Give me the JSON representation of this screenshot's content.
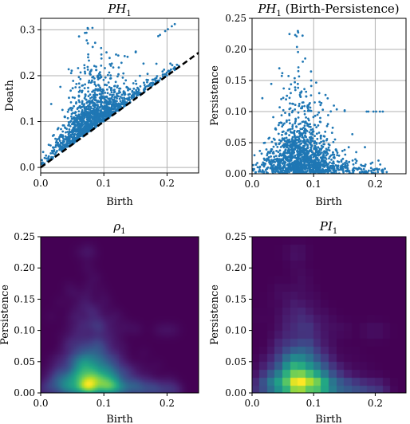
{
  "chart_data": [
    {
      "type": "scatter",
      "title": "PH_1",
      "title_main": "PH",
      "title_sub": "1",
      "xlabel": "Birth",
      "ylabel": "Death",
      "xlim": [
        0,
        0.25
      ],
      "ylim": [
        -0.012,
        0.325
      ],
      "xticks": [
        0.0,
        0.1,
        0.2
      ],
      "xtick_labels": [
        "0.0",
        "0.1",
        "0.2"
      ],
      "yticks": [
        0.0,
        0.1,
        0.2,
        0.3
      ],
      "ytick_labels": [
        "0.0",
        "0.1",
        "0.2",
        "0.3"
      ],
      "grid": true,
      "marker_color": "#1f77b4",
      "diagonal": {
        "style": "dashed",
        "color": "#000000",
        "from": [
          0,
          0
        ],
        "to": [
          0.25,
          0.25
        ]
      },
      "points_description": "≈1500 H1 persistence pairs; births mostly 0.02–0.12, deaths up to 0.32"
    },
    {
      "type": "scatter",
      "title": "PH_1 (Birth-Persistence)",
      "title_main": "PH",
      "title_sub": "1",
      "title_suffix": " (Birth-Persistence)",
      "xlabel": "Birth",
      "ylabel": "Persistence",
      "xlim": [
        0,
        0.25
      ],
      "ylim": [
        0,
        0.25
      ],
      "xticks": [
        0.0,
        0.1,
        0.2
      ],
      "xtick_labels": [
        "0.0",
        "0.1",
        "0.2"
      ],
      "yticks": [
        0.0,
        0.05,
        0.1,
        0.15,
        0.2,
        0.25
      ],
      "ytick_labels": [
        "0.00",
        "0.05",
        "0.10",
        "0.15",
        "0.20",
        "0.25"
      ],
      "grid": true,
      "marker_color": "#1f77b4",
      "points_description": "same pairs plotted as (birth, death − birth)"
    },
    {
      "type": "heatmap",
      "title": "ρ_1",
      "title_main": "ρ",
      "title_sub": "1",
      "xlabel": "Birth",
      "ylabel": "Persistence",
      "xlim": [
        0,
        0.25
      ],
      "ylim": [
        0,
        0.25
      ],
      "xticks": [
        0.0,
        0.1,
        0.2
      ],
      "xtick_labels": [
        "0.0",
        "0.1",
        "0.2"
      ],
      "yticks": [
        0.0,
        0.05,
        0.1,
        0.15,
        0.2,
        0.25
      ],
      "ytick_labels": [
        "0.00",
        "0.05",
        "0.10",
        "0.15",
        "0.20",
        "0.25"
      ],
      "colormap": "viridis",
      "smooth": true,
      "peak": {
        "birth": 0.08,
        "persistence": 0.018
      }
    },
    {
      "type": "heatmap",
      "title": "PI_1",
      "title_main": "PI",
      "title_sub": "1",
      "xlabel": "Birth",
      "ylabel": "Persistence",
      "xlim": [
        0,
        0.25
      ],
      "ylim": [
        0,
        0.25
      ],
      "xticks": [
        0.0,
        0.1,
        0.2
      ],
      "xtick_labels": [
        "0.0",
        "0.1",
        "0.2"
      ],
      "yticks": [
        0.0,
        0.05,
        0.1,
        0.15,
        0.2,
        0.25
      ],
      "ytick_labels": [
        "0.00",
        "0.05",
        "0.10",
        "0.15",
        "0.20",
        "0.25"
      ],
      "colormap": "viridis",
      "smooth": false,
      "grid_cells": 20,
      "peak": {
        "birth": 0.075,
        "persistence": 0.018
      }
    }
  ]
}
